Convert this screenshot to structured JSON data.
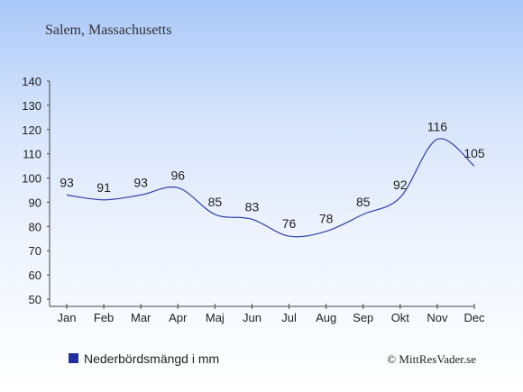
{
  "chart_data": {
    "type": "line",
    "title": "Salem, Massachusetts",
    "categories": [
      "Jan",
      "Feb",
      "Mar",
      "Apr",
      "Maj",
      "Jun",
      "Jul",
      "Aug",
      "Sep",
      "Okt",
      "Nov",
      "Dec"
    ],
    "series": [
      {
        "name": "Nederbördsmängd i mm",
        "values": [
          93,
          91,
          93,
          96,
          85,
          83,
          76,
          78,
          85,
          92,
          116,
          105
        ],
        "color": "#2f3fa8"
      }
    ],
    "ylim": [
      50,
      140
    ],
    "yticks": [
      50,
      60,
      70,
      80,
      90,
      100,
      110,
      120,
      130,
      140
    ],
    "xlabel": "",
    "ylabel": "",
    "grid": false,
    "legend_position": "bottom-left"
  },
  "legend_marker_color": "#1f2fa0",
  "copyright": "© MittResVader.se"
}
